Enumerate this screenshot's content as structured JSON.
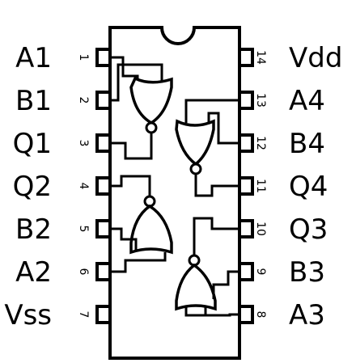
{
  "pins_left": [
    {
      "number": "1",
      "label": "A1"
    },
    {
      "number": "2",
      "label": "B1"
    },
    {
      "number": "3",
      "label": "Q1"
    },
    {
      "number": "4",
      "label": "Q2"
    },
    {
      "number": "5",
      "label": "B2"
    },
    {
      "number": "6",
      "label": "A2"
    },
    {
      "number": "7",
      "label": "Vss"
    }
  ],
  "pins_right": [
    {
      "number": "14",
      "label": "Vdd"
    },
    {
      "number": "13",
      "label": "A4"
    },
    {
      "number": "12",
      "label": "B4"
    },
    {
      "number": "11",
      "label": "Q4"
    },
    {
      "number": "10",
      "label": "Q3"
    },
    {
      "number": "9",
      "label": "B3"
    },
    {
      "number": "8",
      "label": "A3"
    }
  ],
  "colors": {
    "ink": "#000000",
    "background": "#ffffff"
  },
  "gates": [
    {
      "type": "NOR",
      "inputs": [
        "A1",
        "B1"
      ],
      "output": "Q1"
    },
    {
      "type": "NOR",
      "inputs": [
        "A2",
        "B2"
      ],
      "output": "Q2"
    },
    {
      "type": "NOR",
      "inputs": [
        "A3",
        "B3"
      ],
      "output": "Q3"
    },
    {
      "type": "NOR",
      "inputs": [
        "A4",
        "B4"
      ],
      "output": "Q4"
    }
  ]
}
